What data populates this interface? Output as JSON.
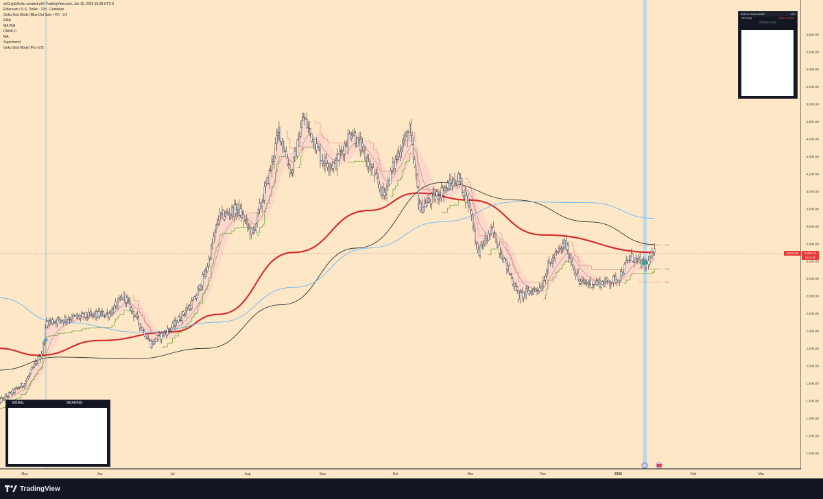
{
  "header": {
    "attribution": "imCryptoGoku created with TradingView.com, Jan 16, 2026 15:58 UTC-5",
    "lines": [
      "Ethereum / U.S. Dollar · 12h · Coinbase",
      "Goku God Mode (Blue Dot Solo +70) · 3.0",
      "EMA",
      "MA Rtitl",
      "DWMi O",
      "MA",
      "Supertrend",
      "Goku God Mode (Pro v72)"
    ]
  },
  "brand": {
    "name": "TradingView"
  },
  "signal_panel": {
    "col1": "SIGNAL",
    "col2": "MEANING"
  },
  "goku_panel": {
    "title": "GOKU GOD MODE",
    "version": "v72",
    "status_label": "STATUS",
    "status_value": "GOD MODE",
    "structure_label": "STRUCTURE"
  },
  "price_label": {
    "symbol": "ETHUSD",
    "price": "3,290.22",
    "countdown": "03:01:52"
  },
  "line_labels": [
    "D0",
    "W0",
    "M0"
  ],
  "colors": {
    "background": "#fde7c7",
    "frame": "#131722",
    "candle_up": "#26a69a",
    "candle_down": "#ef5350",
    "ma_red": "#d32f2f",
    "ma_black": "#333333",
    "ma_blue": "#64b5f6",
    "supertrend_up": "#7cb342",
    "supertrend_down": "#ef9a9a",
    "cloud": "#f8bbd0"
  },
  "chart_data": {
    "type": "candlestick",
    "title": "Ethereum / U.S. Dollar · 12h · Coinbase",
    "symbol": "ETHUSD",
    "ylim": [
      800,
      6000
    ],
    "y_ticks": [
      "1,000.00",
      "1,200.00",
      "1,400.00",
      "1,600.00",
      "1,800.00",
      "2,000.00",
      "2,200.00",
      "2,400.00",
      "2,600.00",
      "2,800.00",
      "3,000.00",
      "3,200.00",
      "3,400.00",
      "3,600.00",
      "3,800.00",
      "4,000.00",
      "4,200.00",
      "4,400.00",
      "4,600.00",
      "4,800.00",
      "5,000.00",
      "5,200.00",
      "5,400.00",
      "5,600.00",
      "5,800.00"
    ],
    "x_ticks": [
      "May",
      "Jun",
      "Jul",
      "Aug",
      "Sep",
      "Oct",
      "Nov",
      "Dec",
      "2026",
      "Feb",
      "Mar"
    ],
    "grid": false,
    "last_price": 3290.22,
    "price_path": [
      [
        "2025-04-20",
        1580
      ],
      [
        "2025-05-01",
        1800
      ],
      [
        "2025-05-08",
        2150
      ],
      [
        "2025-05-10",
        2500
      ],
      [
        "2025-05-20",
        2550
      ],
      [
        "2025-06-05",
        2600
      ],
      [
        "2025-06-11",
        2800
      ],
      [
        "2025-06-22",
        2250
      ],
      [
        "2025-07-01",
        2450
      ],
      [
        "2025-07-10",
        2750
      ],
      [
        "2025-07-15",
        3100
      ],
      [
        "2025-07-20",
        3700
      ],
      [
        "2025-07-28",
        3800
      ],
      [
        "2025-08-03",
        3500
      ],
      [
        "2025-08-10",
        4200
      ],
      [
        "2025-08-14",
        4700
      ],
      [
        "2025-08-19",
        4200
      ],
      [
        "2025-08-24",
        4850
      ],
      [
        "2025-09-01",
        4350
      ],
      [
        "2025-09-06",
        4300
      ],
      [
        "2025-09-13",
        4700
      ],
      [
        "2025-09-22",
        4200
      ],
      [
        "2025-09-26",
        3950
      ],
      [
        "2025-10-03",
        4500
      ],
      [
        "2025-10-07",
        4700
      ],
      [
        "2025-10-11",
        3800
      ],
      [
        "2025-10-20",
        4000
      ],
      [
        "2025-10-27",
        4150
      ],
      [
        "2025-11-01",
        3800
      ],
      [
        "2025-11-04",
        3300
      ],
      [
        "2025-11-10",
        3550
      ],
      [
        "2025-11-21",
        2800
      ],
      [
        "2025-11-30",
        2900
      ],
      [
        "2025-12-03",
        3150
      ],
      [
        "2025-12-10",
        3400
      ],
      [
        "2025-12-16",
        2950
      ],
      [
        "2025-12-26",
        2950
      ],
      [
        "2026-01-01",
        3000
      ],
      [
        "2026-01-06",
        3250
      ],
      [
        "2026-01-12",
        3150
      ],
      [
        "2026-01-16",
        3290
      ]
    ],
    "series": [
      {
        "values": [
          [
            "2025-04-20",
            2200
          ],
          [
            "2025-05-07",
            2120
          ],
          [
            "2025-06-01",
            2290
          ],
          [
            "2025-07-01",
            2390
          ],
          [
            "2025-07-20",
            2590
          ],
          [
            "2025-08-20",
            3300
          ],
          [
            "2025-09-20",
            3780
          ],
          [
            "2025-10-10",
            3980
          ],
          [
            "2025-11-01",
            3900
          ],
          [
            "2025-12-01",
            3500
          ],
          [
            "2026-01-16",
            3300
          ]
        ]
      },
      {
        "values": [
          [
            "2025-04-20",
            1950
          ],
          [
            "2025-05-15",
            2100
          ],
          [
            "2025-06-15",
            2080
          ],
          [
            "2025-07-15",
            2200
          ],
          [
            "2025-08-15",
            2700
          ],
          [
            "2025-09-15",
            3350
          ],
          [
            "2025-10-20",
            4100
          ],
          [
            "2025-11-20",
            3900
          ],
          [
            "2025-12-20",
            3650
          ],
          [
            "2026-01-16",
            3390
          ]
        ]
      },
      {
        "values": [
          [
            "2025-04-20",
            2780
          ],
          [
            "2025-05-15",
            2500
          ],
          [
            "2025-06-20",
            2380
          ],
          [
            "2025-07-20",
            2500
          ],
          [
            "2025-08-20",
            2900
          ],
          [
            "2025-09-20",
            3350
          ],
          [
            "2025-10-20",
            3650
          ],
          [
            "2025-11-20",
            3880
          ],
          [
            "2025-12-20",
            3870
          ],
          [
            "2026-01-16",
            3690
          ]
        ]
      }
    ]
  }
}
